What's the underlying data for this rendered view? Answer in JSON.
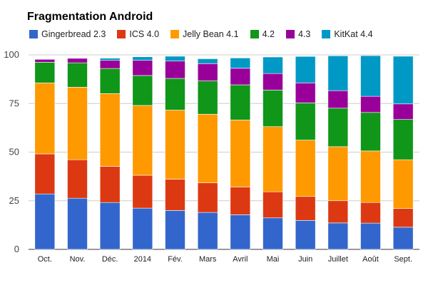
{
  "chart_data": {
    "type": "bar",
    "stacked": true,
    "title": "Fragmentation Android",
    "xlabel": "",
    "ylabel": "",
    "ylim": [
      0,
      100
    ],
    "yticks": [
      0,
      25,
      50,
      75,
      100
    ],
    "grid": true,
    "legend_position": "top",
    "categories": [
      "Oct.",
      "Nov.",
      "Déc.",
      "2014",
      "Fév.",
      "Mars",
      "Avril",
      "Mai",
      "Juin",
      "Juillet",
      "Août",
      "Sept."
    ],
    "series": [
      {
        "name": "Gingerbread 2.3",
        "color": "#3366cc",
        "values": [
          28.5,
          26.3,
          24.1,
          21.2,
          20.0,
          19.0,
          17.8,
          16.2,
          14.9,
          13.6,
          13.5,
          11.4
        ]
      },
      {
        "name": "ICS 4.0",
        "color": "#dc3912",
        "values": [
          20.6,
          19.8,
          18.6,
          16.9,
          16.1,
          15.2,
          14.3,
          13.4,
          12.3,
          11.4,
          10.6,
          9.6
        ]
      },
      {
        "name": "Jelly Bean 4.1",
        "color": "#ff9900",
        "values": [
          36.5,
          37.3,
          37.4,
          35.9,
          35.5,
          35.3,
          34.4,
          33.5,
          29.0,
          27.8,
          26.5,
          25.1
        ]
      },
      {
        "name": "4.2",
        "color": "#109618",
        "values": [
          10.6,
          12.5,
          12.9,
          15.4,
          16.3,
          17.1,
          18.1,
          18.8,
          19.1,
          19.8,
          19.8,
          20.7
        ]
      },
      {
        "name": "4.3",
        "color": "#990099",
        "values": [
          1.5,
          2.3,
          4.2,
          7.8,
          8.9,
          8.9,
          8.5,
          8.5,
          10.3,
          9.0,
          8.3,
          8.0
        ]
      },
      {
        "name": "KitKat 4.4",
        "color": "#0099c6",
        "values": [
          0,
          0,
          1.1,
          1.8,
          2.5,
          2.5,
          5.3,
          8.5,
          13.6,
          17.9,
          20.9,
          24.5
        ]
      }
    ]
  }
}
